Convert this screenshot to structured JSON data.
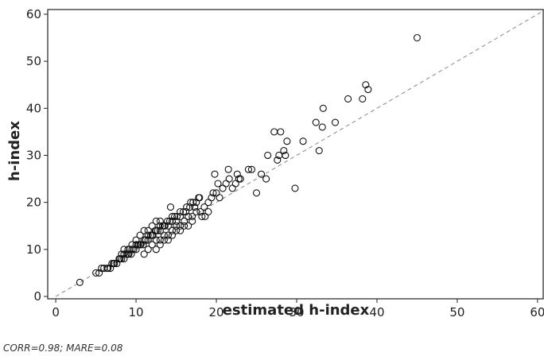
{
  "chart_data": {
    "type": "scatter",
    "title": "",
    "xlabel": "estimated h-index",
    "ylabel": "h-index",
    "xlim": [
      -1,
      61
    ],
    "ylim": [
      -0.5,
      61
    ],
    "xticks": [
      0,
      10,
      20,
      30,
      40,
      50,
      60
    ],
    "yticks": [
      0,
      10,
      20,
      30,
      40,
      50,
      60
    ],
    "grid": false,
    "reference_line": {
      "style": "dashed",
      "from": [
        0,
        0
      ],
      "to": [
        61,
        61
      ]
    },
    "series": [
      {
        "marker": "open-circle",
        "points": [
          [
            3,
            3
          ],
          [
            5,
            5
          ],
          [
            5.4,
            5
          ],
          [
            5.7,
            6
          ],
          [
            6,
            6
          ],
          [
            6.4,
            6
          ],
          [
            6.8,
            6
          ],
          [
            7,
            7
          ],
          [
            7.3,
            7
          ],
          [
            7.6,
            7
          ],
          [
            7.9,
            8
          ],
          [
            8.2,
            8
          ],
          [
            8.5,
            8
          ],
          [
            8.8,
            9
          ],
          [
            9.1,
            9
          ],
          [
            9.4,
            9
          ],
          [
            9.7,
            10
          ],
          [
            10,
            10
          ],
          [
            10.3,
            11
          ],
          [
            10.6,
            11
          ],
          [
            10.9,
            11
          ],
          [
            11.2,
            12
          ],
          [
            11.5,
            12
          ],
          [
            11.8,
            13
          ],
          [
            12.1,
            13
          ],
          [
            12.4,
            14
          ],
          [
            12.7,
            14
          ],
          [
            13,
            15
          ],
          [
            13.3,
            15
          ],
          [
            13.6,
            15
          ],
          [
            13.9,
            16
          ],
          [
            14.2,
            16
          ],
          [
            14.5,
            17
          ],
          [
            14.8,
            17
          ],
          [
            15.1,
            17
          ],
          [
            15.5,
            18
          ],
          [
            15.9,
            18
          ],
          [
            16.3,
            19
          ],
          [
            16.7,
            19
          ],
          [
            17.1,
            20
          ],
          [
            17.5,
            20
          ],
          [
            17.9,
            21
          ],
          [
            8,
            8
          ],
          [
            8.5,
            9
          ],
          [
            9,
            9
          ],
          [
            9.5,
            10
          ],
          [
            10,
            11
          ],
          [
            10.5,
            11
          ],
          [
            11,
            12
          ],
          [
            11.5,
            13
          ],
          [
            12,
            13
          ],
          [
            12.5,
            14
          ],
          [
            13,
            14
          ],
          [
            13.5,
            15
          ],
          [
            14,
            15
          ],
          [
            14.5,
            16
          ],
          [
            15,
            16
          ],
          [
            8.5,
            10
          ],
          [
            9,
            10
          ],
          [
            9.5,
            11
          ],
          [
            10,
            12
          ],
          [
            10.5,
            13
          ],
          [
            11,
            14
          ],
          [
            11.5,
            14
          ],
          [
            12,
            15
          ],
          [
            12.5,
            16
          ],
          [
            13,
            16
          ],
          [
            8.2,
            9
          ],
          [
            9.2,
            10
          ],
          [
            10.2,
            11
          ],
          [
            11.2,
            12
          ],
          [
            11,
            9
          ],
          [
            11.5,
            10
          ],
          [
            12,
            11
          ],
          [
            12.5,
            12
          ],
          [
            13,
            12
          ],
          [
            13.5,
            13
          ],
          [
            14,
            13
          ],
          [
            14.5,
            14
          ],
          [
            15,
            15
          ],
          [
            15.5,
            15
          ],
          [
            16,
            16
          ],
          [
            16.5,
            17
          ],
          [
            17,
            17
          ],
          [
            17.5,
            18
          ],
          [
            18,
            18
          ],
          [
            18.5,
            19
          ],
          [
            19,
            20
          ],
          [
            12.5,
            10
          ],
          [
            13,
            11
          ],
          [
            14,
            12
          ],
          [
            15,
            14
          ],
          [
            16,
            15
          ],
          [
            17,
            16
          ],
          [
            13.5,
            12
          ],
          [
            14.5,
            13
          ],
          [
            15.5,
            14
          ],
          [
            16.5,
            15
          ],
          [
            6.5,
            6
          ],
          [
            7.2,
            7
          ],
          [
            14.3,
            19
          ],
          [
            15.5,
            17
          ],
          [
            16.2,
            18
          ],
          [
            16.8,
            20
          ],
          [
            17.3,
            19
          ],
          [
            17.8,
            21
          ],
          [
            18.2,
            17
          ],
          [
            18.6,
            17
          ],
          [
            19,
            18
          ],
          [
            19.4,
            21
          ],
          [
            19.6,
            22
          ],
          [
            20,
            22
          ],
          [
            20.4,
            21
          ],
          [
            20.8,
            23
          ],
          [
            21.2,
            24
          ],
          [
            21.6,
            25
          ],
          [
            22,
            23
          ],
          [
            22.4,
            24
          ],
          [
            22.8,
            25
          ],
          [
            20.2,
            24
          ],
          [
            19.8,
            26
          ],
          [
            21.5,
            27
          ],
          [
            22.6,
            26
          ],
          [
            23,
            25
          ],
          [
            24,
            27
          ],
          [
            24.4,
            27
          ],
          [
            25,
            22
          ],
          [
            25.6,
            26
          ],
          [
            26.2,
            25
          ],
          [
            26.4,
            30
          ],
          [
            27.2,
            35
          ],
          [
            27.6,
            29
          ],
          [
            27.8,
            30
          ],
          [
            28,
            35
          ],
          [
            28.4,
            31
          ],
          [
            28.6,
            30
          ],
          [
            28.8,
            33
          ],
          [
            29.8,
            23
          ],
          [
            30.8,
            33
          ],
          [
            32.4,
            37
          ],
          [
            32.8,
            31
          ],
          [
            33.2,
            36
          ],
          [
            33.3,
            40
          ],
          [
            34.8,
            37
          ],
          [
            36.4,
            42
          ],
          [
            38.2,
            42
          ],
          [
            38.6,
            45
          ],
          [
            38.9,
            44
          ],
          [
            45,
            55
          ]
        ]
      }
    ],
    "annotation": "CORR=0.98; MARE=0.08"
  }
}
